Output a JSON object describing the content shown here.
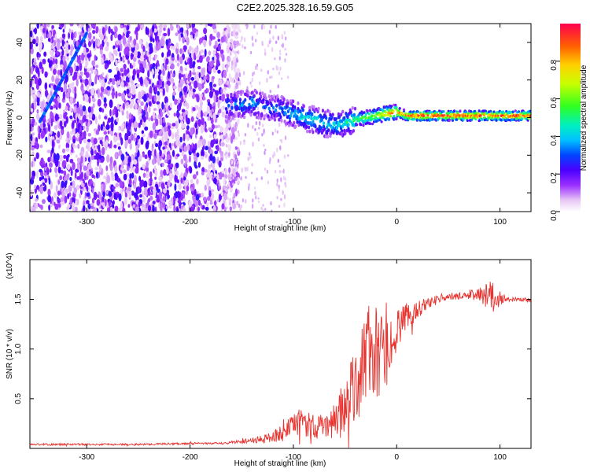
{
  "title": "C2E2.2025.328.16.59.G05",
  "colorbar": {
    "label": "Normalized spectral amplitude",
    "ticks": [
      "0.0",
      "0.2",
      "0.4",
      "0.6",
      "0.8"
    ],
    "tick_values": [
      0.0,
      0.2,
      0.4,
      0.6,
      0.8
    ],
    "range": [
      0,
      1
    ]
  },
  "chart_data": [
    {
      "type": "heatmap",
      "name": "spectrogram",
      "xlabel": "Height of straight line (km)",
      "ylabel": "Frequency (Hz)",
      "xlim": [
        -355,
        130
      ],
      "ylim": [
        -50,
        50
      ],
      "xticks": [
        -300,
        -200,
        -100,
        0,
        100
      ],
      "xtick_labels": [
        "-300",
        "-200",
        "-100",
        "0",
        "100"
      ],
      "yticks": [
        -40,
        -20,
        0,
        20,
        40
      ],
      "ytick_labels": [
        "-40",
        "-20",
        "0",
        "20",
        "40"
      ],
      "noise_region_x": [
        -355,
        -165
      ],
      "signal_track": {
        "x": [
          -165,
          -150,
          -140,
          -130,
          -120,
          -110,
          -100,
          -90,
          -80,
          -70,
          -60,
          -50,
          -45,
          -40,
          -30,
          -20,
          -10,
          0,
          5,
          10,
          20,
          40,
          60,
          80,
          90,
          100,
          130
        ],
        "freq": [
          6,
          7,
          8,
          6,
          5,
          4,
          2,
          0,
          -1,
          -3,
          -4,
          -3,
          -2,
          -1,
          0,
          1,
          2,
          3,
          2,
          1,
          1,
          1,
          1,
          1,
          1,
          1,
          1
        ],
        "amplitude": [
          0.3,
          0.35,
          0.4,
          0.3,
          0.32,
          0.35,
          0.4,
          0.45,
          0.45,
          0.42,
          0.42,
          0.45,
          0.5,
          0.55,
          0.6,
          0.7,
          0.8,
          0.9,
          0.85,
          0.9,
          0.95,
          0.95,
          0.95,
          0.95,
          0.9,
          0.95,
          0.95
        ]
      },
      "rising_streak": {
        "x": [
          -345,
          -300
        ],
        "freq": [
          -2,
          45
        ],
        "amplitude": 0.3
      }
    },
    {
      "type": "line",
      "name": "snr",
      "xlabel": "Height of straight line (km)",
      "ylabel": "SNR (10 * v/v)",
      "y_multiplier": "(x10^4)",
      "xlim": [
        -355,
        130
      ],
      "ylim": [
        0,
        1.9
      ],
      "xticks": [
        -300,
        -200,
        -100,
        0,
        100
      ],
      "xtick_labels": [
        "-300",
        "-200",
        "-100",
        "0",
        "100"
      ],
      "yticks": [
        0.5,
        1.0,
        1.5
      ],
      "ytick_labels": [
        "0.5",
        "1.0",
        "1.5"
      ],
      "series": [
        {
          "name": "SNR",
          "color": "#e8332f",
          "x": [
            -355,
            -300,
            -250,
            -200,
            -170,
            -150,
            -130,
            -120,
            -110,
            -100,
            -90,
            -80,
            -70,
            -60,
            -50,
            -40,
            -35,
            -30,
            -25,
            -20,
            -15,
            -10,
            -5,
            0,
            10,
            20,
            30,
            40,
            50,
            60,
            70,
            80,
            90,
            95,
            100,
            110,
            120,
            130
          ],
          "y": [
            0.04,
            0.04,
            0.04,
            0.05,
            0.05,
            0.07,
            0.09,
            0.12,
            0.16,
            0.22,
            0.28,
            0.22,
            0.2,
            0.3,
            0.42,
            0.6,
            0.8,
            0.95,
            1.0,
            0.95,
            0.88,
            0.95,
            1.05,
            1.2,
            1.3,
            1.4,
            1.47,
            1.5,
            1.52,
            1.53,
            1.54,
            1.55,
            1.55,
            1.5,
            1.52,
            1.5,
            1.5,
            1.49
          ],
          "noise_amplitude": [
            0.01,
            0.01,
            0.01,
            0.01,
            0.01,
            0.02,
            0.04,
            0.06,
            0.09,
            0.12,
            0.16,
            0.12,
            0.12,
            0.2,
            0.3,
            0.4,
            0.45,
            0.5,
            0.5,
            0.48,
            0.45,
            0.35,
            0.28,
            0.2,
            0.15,
            0.1,
            0.06,
            0.04,
            0.03,
            0.03,
            0.04,
            0.08,
            0.16,
            0.14,
            0.06,
            0.02,
            0.02,
            0.02
          ]
        }
      ]
    }
  ],
  "colors": {
    "signal_line": "#e8332f",
    "axes": "#000000",
    "background": "#ffffff"
  }
}
